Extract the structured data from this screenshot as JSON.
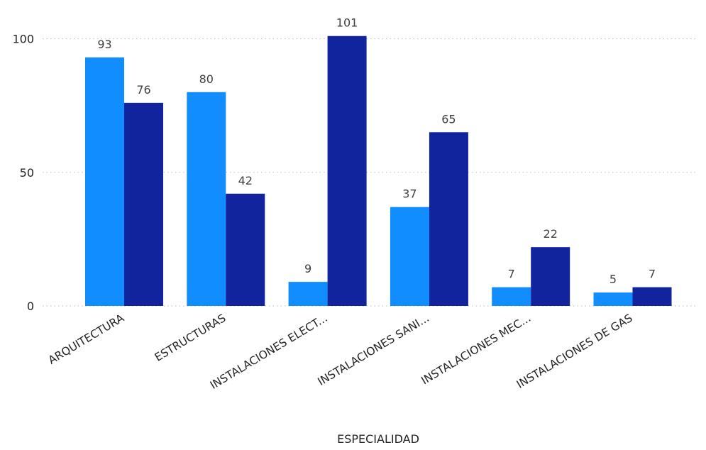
{
  "chart_data": {
    "type": "bar",
    "title": "",
    "xlabel": "ESPECIALIDAD",
    "ylabel": "",
    "categories": [
      "ARQUITECTURA",
      "ESTRUCTURAS",
      "INSTALACIONES ELECT...",
      "INSTALACIONES SANI...",
      "INSTALACIONES MEC...",
      "INSTALACIONES DE GAS"
    ],
    "series": [
      {
        "values": [
          93,
          80,
          9,
          37,
          7,
          5
        ],
        "color": "#118dff"
      },
      {
        "values": [
          76,
          42,
          101,
          65,
          22,
          7
        ],
        "color": "#12239e"
      }
    ],
    "ylim": [
      0,
      101
    ],
    "yticks": [
      0,
      50,
      100
    ],
    "grid": true,
    "legend": "none"
  }
}
